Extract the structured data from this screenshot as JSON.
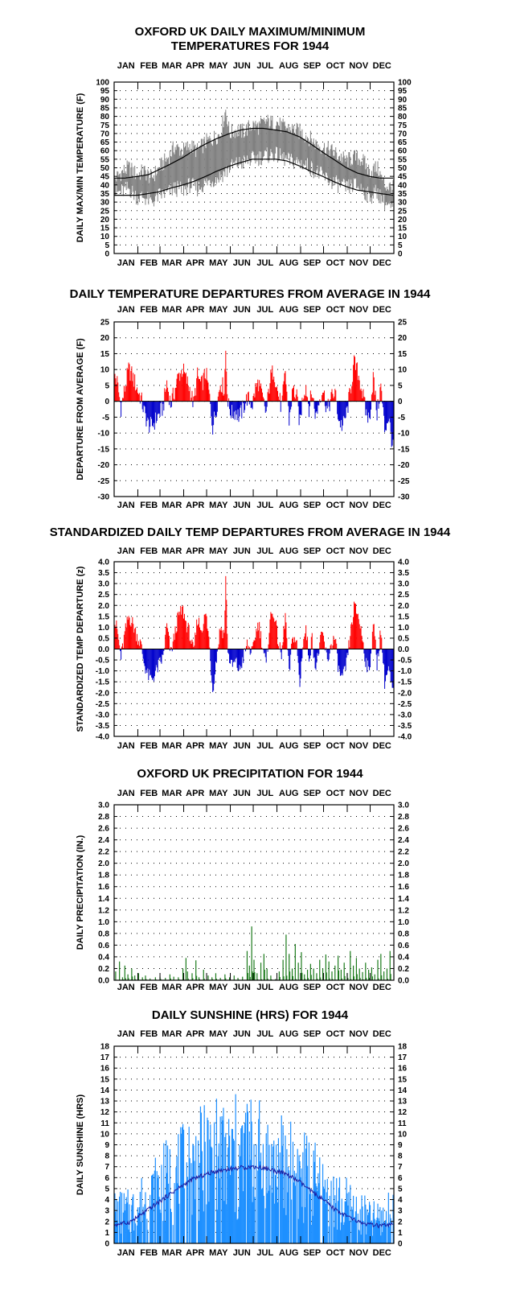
{
  "months": [
    "JAN",
    "FEB",
    "MAR",
    "APR",
    "MAY",
    "JUN",
    "JUL",
    "AUG",
    "SEP",
    "OCT",
    "NOV",
    "DEC"
  ],
  "colors": {
    "temp_series": "#808080",
    "normal_lines": "#000000",
    "warm": "#ff0000",
    "cold": "#0000cc",
    "precip": "#1a7a1a",
    "sunshine": "#1e90ff",
    "sun_avg": "#1a1aa0"
  },
  "chart_data": [
    {
      "id": "maxmin",
      "type": "area",
      "title": [
        "OXFORD UK DAILY MAXIMUM/MINIMUM",
        "TEMPERATURES FOR 1944"
      ],
      "ylabel": "DAILY MAX/MIN TEMPERATURE (F)",
      "ylim": [
        0,
        100
      ],
      "yticks": [
        0,
        5,
        10,
        15,
        20,
        25,
        30,
        35,
        40,
        45,
        50,
        55,
        60,
        65,
        70,
        75,
        80,
        85,
        90,
        95,
        100
      ],
      "ytick_labels": [
        "0",
        "5",
        "10",
        "15",
        "20",
        "25",
        "30",
        "35",
        "40",
        "45",
        "50",
        "55",
        "60",
        "65",
        "70",
        "75",
        "80",
        "85",
        "90",
        "95",
        "100"
      ],
      "grid": true,
      "series": [
        {
          "name": "",
          "kind": "daily_max_anchors",
          "x": [
            1,
            10,
            20,
            31,
            40,
            50,
            60,
            70,
            80,
            91,
            100,
            110,
            121,
            130,
            140,
            147,
            152,
            160,
            170,
            182,
            190,
            200,
            210,
            213,
            220,
            230,
            244,
            255,
            265,
            274,
            285,
            295,
            305,
            315,
            325,
            335,
            345,
            355,
            366
          ],
          "values": [
            43,
            47,
            50,
            46,
            48,
            44,
            50,
            55,
            62,
            60,
            63,
            60,
            65,
            67,
            70,
            84,
            70,
            72,
            71,
            75,
            74,
            77,
            76,
            77,
            74,
            73,
            71,
            68,
            64,
            62,
            60,
            57,
            54,
            56,
            55,
            48,
            50,
            40,
            38
          ]
        },
        {
          "name": "",
          "kind": "daily_min_anchors",
          "x": [
            1,
            10,
            20,
            31,
            40,
            50,
            60,
            70,
            80,
            91,
            100,
            110,
            121,
            130,
            140,
            152,
            160,
            170,
            182,
            190,
            200,
            210,
            220,
            230,
            244,
            255,
            265,
            274,
            285,
            295,
            305,
            315,
            325,
            335,
            345,
            355,
            366
          ],
          "values": [
            35,
            36,
            38,
            33,
            33,
            30,
            34,
            35,
            38,
            37,
            40,
            38,
            41,
            43,
            45,
            50,
            52,
            53,
            55,
            56,
            57,
            58,
            56,
            54,
            53,
            51,
            48,
            45,
            42,
            40,
            38,
            40,
            38,
            33,
            36,
            30,
            25
          ]
        },
        {
          "name": "",
          "kind": "normal_max",
          "x": [
            1,
            15,
            32,
            46,
            60,
            74,
            91,
            105,
            121,
            135,
            152,
            166,
            182,
            196,
            213,
            227,
            244,
            258,
            274,
            288,
            305,
            319,
            335,
            349,
            366
          ],
          "values": [
            44,
            44,
            45,
            46,
            49,
            52,
            56,
            60,
            64,
            67,
            70,
            72,
            73,
            73,
            72,
            71,
            68,
            64,
            59,
            55,
            50,
            47,
            45,
            44,
            44
          ]
        },
        {
          "name": "",
          "kind": "normal_min",
          "x": [
            1,
            15,
            32,
            46,
            60,
            74,
            91,
            105,
            121,
            135,
            152,
            166,
            182,
            196,
            213,
            227,
            244,
            258,
            274,
            288,
            305,
            319,
            335,
            349,
            366
          ],
          "values": [
            34,
            34,
            34,
            35,
            36,
            38,
            40,
            42,
            45,
            48,
            51,
            53,
            55,
            55,
            55,
            54,
            51,
            48,
            45,
            42,
            39,
            37,
            36,
            35,
            34
          ]
        }
      ]
    },
    {
      "id": "departure",
      "type": "bar",
      "title": [
        "DAILY TEMPERATURE DEPARTURES FROM AVERAGE IN 1944"
      ],
      "ylabel": "DEPARTURE FROM AVERAGE (F)",
      "ylim": [
        -30,
        25
      ],
      "yticks": [
        -30,
        -25,
        -20,
        -15,
        -10,
        -5,
        0,
        5,
        10,
        15,
        20,
        25
      ],
      "ytick_labels": [
        "-30",
        "-25",
        "-20",
        "-15",
        "-10",
        "-5",
        "0",
        "5",
        "10",
        "15",
        "20",
        "25"
      ],
      "grid": true,
      "anchors_x": [
        1,
        5,
        10,
        15,
        20,
        25,
        31,
        36,
        40,
        45,
        50,
        55,
        60,
        65,
        70,
        75,
        80,
        85,
        91,
        95,
        100,
        105,
        110,
        115,
        121,
        125,
        130,
        135,
        140,
        145,
        147,
        150,
        155,
        160,
        165,
        170,
        175,
        182,
        186,
        190,
        195,
        200,
        205,
        210,
        215,
        220,
        225,
        230,
        235,
        240,
        244,
        248,
        252,
        256,
        260,
        265,
        270,
        274,
        280,
        285,
        290,
        295,
        300,
        305,
        310,
        315,
        320,
        325,
        330,
        335,
        340,
        345,
        350,
        355,
        360,
        366
      ],
      "anchors_y": [
        9,
        6,
        -2,
        4,
        10,
        8,
        4,
        1,
        -3,
        -7,
        -8,
        -6,
        -4,
        -2,
        6,
        -1,
        3,
        8,
        10,
        7,
        4,
        -1,
        8,
        5,
        9,
        3,
        -8,
        -2,
        6,
        4,
        16,
        -1,
        -4,
        -3,
        -5,
        -2,
        1,
        -1,
        4,
        6,
        1,
        -4,
        7,
        10,
        3,
        -2,
        9,
        -6,
        4,
        1,
        -7,
        2,
        5,
        -2,
        3,
        -5,
        1,
        4,
        -3,
        1,
        3,
        -6,
        -8,
        -4,
        3,
        12,
        9,
        4,
        -3,
        -6,
        8,
        -4,
        5,
        -9,
        -5,
        -15
      ]
    },
    {
      "id": "standardized",
      "type": "bar",
      "title": [
        "STANDARDIZED DAILY TEMP DEPARTURES FROM AVERAGE IN 1944"
      ],
      "ylabel": "STANDARDIZED TEMP DEPARTURE (z)",
      "ylim": [
        -4.0,
        4.0
      ],
      "yticks": [
        -4,
        -3.5,
        -3,
        -2.5,
        -2,
        -1.5,
        -1,
        -0.5,
        0,
        0.5,
        1,
        1.5,
        2,
        2.5,
        3,
        3.5,
        4
      ],
      "ytick_labels": [
        "-4.0",
        "-3.5",
        "-3.0",
        "-2.5",
        "-2.0",
        "-1.5",
        "-1.0",
        "-0.5",
        "0.0",
        "0.5",
        "1.0",
        "1.5",
        "2.0",
        "2.5",
        "3.0",
        "3.5",
        "4.0"
      ],
      "grid": true,
      "anchors_x": [
        1,
        5,
        10,
        15,
        20,
        25,
        31,
        36,
        40,
        45,
        50,
        55,
        60,
        65,
        70,
        75,
        80,
        85,
        91,
        95,
        100,
        105,
        110,
        115,
        121,
        125,
        130,
        135,
        140,
        145,
        147,
        150,
        155,
        160,
        165,
        170,
        175,
        182,
        186,
        190,
        195,
        200,
        205,
        210,
        215,
        220,
        225,
        230,
        235,
        240,
        244,
        248,
        252,
        256,
        260,
        265,
        270,
        274,
        280,
        285,
        290,
        295,
        300,
        305,
        310,
        315,
        320,
        325,
        330,
        335,
        340,
        345,
        350,
        355,
        360,
        366
      ],
      "anchors_y": [
        1.3,
        0.9,
        -0.4,
        0.7,
        1.5,
        1.2,
        0.6,
        0.2,
        -0.6,
        -1.2,
        -1.4,
        -1.1,
        -0.7,
        -0.4,
        1.1,
        -0.2,
        0.6,
        1.5,
        1.8,
        1.2,
        0.7,
        -0.2,
        1.4,
        0.9,
        1.6,
        0.5,
        -1.9,
        -0.4,
        1.0,
        0.7,
        3.2,
        -0.2,
        -0.8,
        -0.6,
        -1.0,
        -0.4,
        0.2,
        -0.2,
        0.7,
        1.2,
        0.2,
        -0.8,
        1.4,
        1.7,
        0.5,
        -0.4,
        1.6,
        -1.2,
        0.7,
        0.2,
        -1.7,
        0.3,
        0.9,
        -0.4,
        0.5,
        -0.9,
        0.2,
        0.7,
        -0.6,
        0.2,
        0.5,
        -1.0,
        -1.4,
        -0.7,
        0.6,
        1.9,
        1.6,
        0.7,
        -0.5,
        -1.1,
        1.3,
        -0.7,
        0.9,
        -1.5,
        -0.9,
        -2.1
      ]
    },
    {
      "id": "precip",
      "type": "bar",
      "title": [
        "OXFORD UK PRECIPITATION FOR 1944"
      ],
      "ylabel": "DAILY PRECIPITATION (IN.)",
      "ylim": [
        0,
        3.0
      ],
      "yticks": [
        0,
        0.2,
        0.4,
        0.6,
        0.8,
        1.0,
        1.2,
        1.4,
        1.6,
        1.8,
        2.0,
        2.2,
        2.4,
        2.6,
        2.8,
        3.0
      ],
      "ytick_labels": [
        "0.0",
        "0.2",
        "0.4",
        "0.6",
        "0.8",
        "1.0",
        "1.2",
        "1.4",
        "1.6",
        "1.8",
        "2.0",
        "2.2",
        "2.4",
        "2.6",
        "2.8",
        "3.0"
      ],
      "grid": true,
      "events_x": [
        3,
        8,
        12,
        15,
        19,
        24,
        28,
        33,
        38,
        42,
        48,
        55,
        61,
        68,
        74,
        79,
        85,
        91,
        95,
        97,
        103,
        108,
        112,
        118,
        124,
        129,
        134,
        140,
        146,
        152,
        158,
        163,
        169,
        175,
        178,
        181,
        184,
        188,
        193,
        197,
        201,
        206,
        212,
        217,
        222,
        226,
        230,
        234,
        238,
        242,
        246,
        250,
        254,
        258,
        262,
        266,
        270,
        274,
        278,
        282,
        286,
        290,
        294,
        298,
        302,
        306,
        310,
        314,
        318,
        322,
        326,
        330,
        334,
        338,
        342,
        346,
        350,
        354,
        358,
        362
      ],
      "events_y": [
        0.15,
        0.32,
        0.05,
        0.25,
        0.1,
        0.2,
        0.08,
        0.12,
        0.05,
        0.08,
        0.03,
        0.05,
        0.06,
        0.04,
        0.1,
        0.06,
        0.05,
        0.2,
        0.38,
        0.15,
        0.12,
        0.34,
        0.05,
        0.18,
        0.08,
        0.05,
        0.12,
        0.04,
        0.1,
        0.05,
        0.08,
        0.04,
        0.06,
        0.5,
        0.25,
        0.92,
        0.35,
        0.12,
        0.3,
        0.45,
        0.2,
        0.08,
        0.02,
        0.15,
        0.35,
        0.78,
        0.45,
        0.2,
        0.62,
        0.3,
        0.48,
        0.1,
        0.18,
        0.28,
        0.2,
        0.12,
        0.35,
        0.2,
        0.44,
        0.32,
        0.15,
        0.25,
        0.42,
        0.18,
        0.3,
        0.12,
        0.5,
        0.25,
        0.38,
        0.2,
        0.14,
        0.3,
        0.18,
        0.22,
        0.1,
        0.35,
        0.45,
        0.15,
        0.2,
        0.5
      ]
    },
    {
      "id": "sunshine",
      "type": "bar",
      "title": [
        "DAILY SUNSHINE (HRS) FOR 1944"
      ],
      "ylabel": "DAILY SUNSHINE (HRS)",
      "ylim": [
        0,
        18
      ],
      "yticks": [
        0,
        1,
        2,
        3,
        4,
        5,
        6,
        7,
        8,
        9,
        10,
        11,
        12,
        13,
        14,
        15,
        16,
        17,
        18
      ],
      "ytick_labels": [
        "0",
        "1",
        "2",
        "3",
        "4",
        "5",
        "6",
        "7",
        "8",
        "9",
        "10",
        "11",
        "12",
        "13",
        "14",
        "15",
        "16",
        "17",
        "18"
      ],
      "grid": true,
      "envelope_x": [
        1,
        20,
        32,
        46,
        60,
        74,
        91,
        105,
        121,
        135,
        152,
        166,
        182,
        196,
        213,
        227,
        244,
        258,
        274,
        288,
        305,
        319,
        335,
        349,
        366
      ],
      "envelope_y": [
        5,
        5,
        6,
        7,
        9,
        10,
        11,
        12,
        13,
        13.5,
        13.5,
        14,
        14.5,
        13,
        12,
        12,
        11,
        10,
        8,
        7,
        6,
        5,
        4,
        4,
        5
      ],
      "average_x": [
        1,
        20,
        32,
        46,
        60,
        74,
        91,
        105,
        121,
        135,
        152,
        166,
        182,
        196,
        213,
        227,
        244,
        258,
        274,
        288,
        305,
        319,
        335,
        349,
        366
      ],
      "average_y": [
        1.7,
        1.9,
        2.4,
        3.1,
        3.8,
        4.5,
        5.3,
        5.9,
        6.3,
        6.6,
        6.8,
        6.9,
        7.0,
        6.9,
        6.6,
        6.3,
        5.6,
        4.8,
        4.0,
        3.2,
        2.5,
        2.0,
        1.7,
        1.6,
        1.7
      ]
    }
  ]
}
